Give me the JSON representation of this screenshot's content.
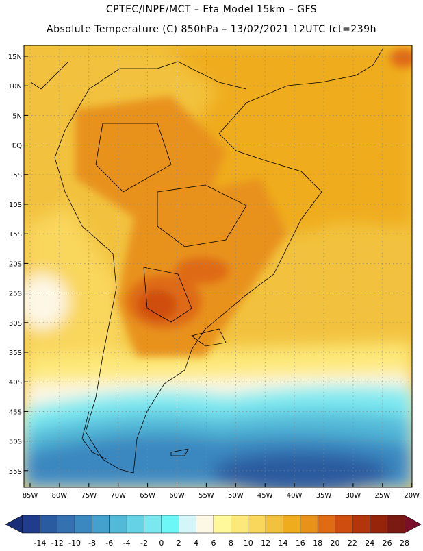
{
  "header": {
    "line1": "CPTEC/INPE/MCT –  Eta Model 15km – GFS",
    "line2": "Absolute Temperature (C) 850hPa – 13/02/2021 12UTC fct=239h"
  },
  "map": {
    "lat_labels": [
      "15N",
      "10N",
      "5N",
      "EQ",
      "5S",
      "10S",
      "15S",
      "20S",
      "25S",
      "30S",
      "35S",
      "40S",
      "45S",
      "50S",
      "55S"
    ],
    "lon_labels": [
      "85W",
      "80W",
      "75W",
      "70W",
      "65W",
      "60W",
      "55W",
      "50W",
      "45W",
      "40W",
      "35W",
      "30W",
      "25W",
      "20W"
    ]
  },
  "colorbar": {
    "values": [
      "-14",
      "-12",
      "-10",
      "-8",
      "-6",
      "-4",
      "-2",
      "0",
      "2",
      "4",
      "6",
      "8",
      "10",
      "12",
      "14",
      "16",
      "18",
      "20",
      "22",
      "24",
      "26",
      "28"
    ],
    "colors": [
      "#1f3d8c",
      "#2a5a9f",
      "#3471b0",
      "#3b87bf",
      "#44a0cc",
      "#52b9d8",
      "#66d2e6",
      "#7be8f0",
      "#6ef7f7",
      "#d4f6fb",
      "#fdf7e6",
      "#fff99c",
      "#fde97a",
      "#f9d65c",
      "#f2c23e",
      "#efac1c",
      "#e8921a",
      "#df6b12",
      "#cf4d0f",
      "#b3350b",
      "#96240a",
      "#7a1a12"
    ],
    "end_low": "#182f78",
    "end_high": "#7a0f2a"
  }
}
